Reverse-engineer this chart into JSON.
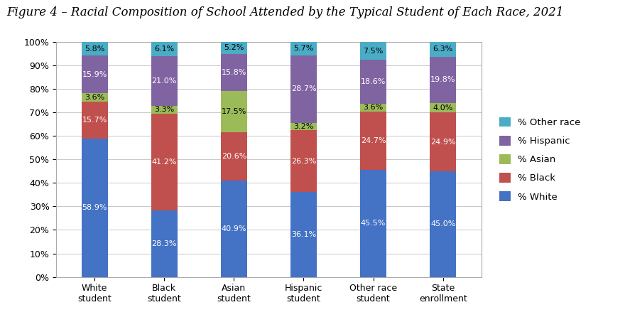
{
  "title": "Figure 4 – Racial Composition of School Attended by the Typical Student of Each Race, 2021",
  "categories": [
    "White\nstudent",
    "Black\nstudent",
    "Asian\nstudent",
    "Hispanic\nstudent",
    "Other race\nstudent",
    "State\nenrollment"
  ],
  "series": {
    "% White": [
      58.9,
      28.3,
      40.9,
      36.1,
      45.5,
      45.0
    ],
    "% Black": [
      15.7,
      41.2,
      20.6,
      26.3,
      24.7,
      24.9
    ],
    "% Asian": [
      3.6,
      3.3,
      17.5,
      3.2,
      3.6,
      4.0
    ],
    "% Hispanic": [
      15.9,
      21.0,
      15.8,
      28.7,
      18.6,
      19.8
    ],
    "% Other race": [
      5.8,
      6.1,
      5.2,
      5.7,
      7.5,
      6.3
    ]
  },
  "colors": {
    "% White": "#4472C4",
    "% Black": "#C0504D",
    "% Asian": "#9BBB59",
    "% Hispanic": "#8064A2",
    "% Other race": "#4BACC6"
  },
  "legend_order": [
    "% Other race",
    "% Hispanic",
    "% Asian",
    "% Black",
    "% White"
  ],
  "ylim": [
    0,
    100
  ],
  "yticks": [
    0,
    10,
    20,
    30,
    40,
    50,
    60,
    70,
    80,
    90,
    100
  ],
  "ytick_labels": [
    "0%",
    "10%",
    "20%",
    "30%",
    "40%",
    "50%",
    "60%",
    "70%",
    "80%",
    "90%",
    "100%"
  ],
  "background_color": "#FFFFFF",
  "plot_bg_color": "#FFFFFF",
  "title_fontsize": 12,
  "bar_width": 0.38,
  "label_fontsize": 8,
  "white_label_color": "#FFFFFF",
  "black_label_color": "#000000",
  "grid_color": "#C8C8C8",
  "frame_color": "#AAAAAA"
}
